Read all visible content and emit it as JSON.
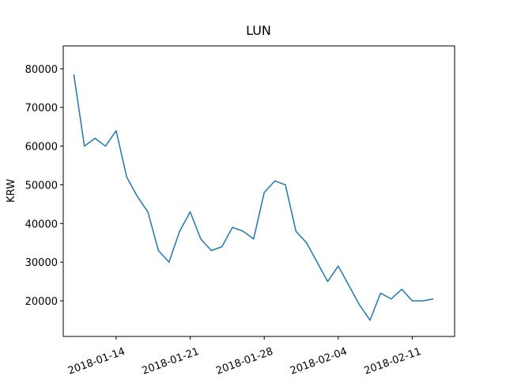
{
  "chart_data": {
    "type": "line",
    "title": "LUN",
    "y_label": "KRW",
    "x": [
      "2018-01-10",
      "2018-01-11",
      "2018-01-12",
      "2018-01-13",
      "2018-01-14",
      "2018-01-15",
      "2018-01-16",
      "2018-01-17",
      "2018-01-18",
      "2018-01-19",
      "2018-01-20",
      "2018-01-21",
      "2018-01-22",
      "2018-01-23",
      "2018-01-24",
      "2018-01-25",
      "2018-01-26",
      "2018-01-27",
      "2018-01-28",
      "2018-01-29",
      "2018-01-30",
      "2018-01-31",
      "2018-02-01",
      "2018-02-02",
      "2018-02-03",
      "2018-02-04",
      "2018-02-05",
      "2018-02-06",
      "2018-02-07",
      "2018-02-08",
      "2018-02-09",
      "2018-02-10",
      "2018-02-11",
      "2018-02-12",
      "2018-02-13"
    ],
    "series": [
      {
        "name": "LUN",
        "color": "#1f77b4",
        "values": [
          78500,
          60000,
          62000,
          60000,
          64000,
          52000,
          47000,
          43000,
          33000,
          30000,
          38000,
          43000,
          36000,
          33000,
          34000,
          39000,
          38000,
          36000,
          48000,
          51000,
          50000,
          38000,
          35000,
          30000,
          25000,
          29000,
          24000,
          19000,
          15000,
          22000,
          20500,
          23000,
          20000,
          20000,
          20500
        ]
      }
    ],
    "xlim": [
      "2018-01-09",
      "2018-02-15"
    ],
    "xticks": [
      "2018-01-14",
      "2018-01-21",
      "2018-01-28",
      "2018-02-04",
      "2018-02-11"
    ],
    "ylim": [
      10800,
      85900
    ],
    "yticks": [
      20000,
      30000,
      40000,
      50000,
      60000,
      70000,
      80000
    ],
    "grid": false
  }
}
